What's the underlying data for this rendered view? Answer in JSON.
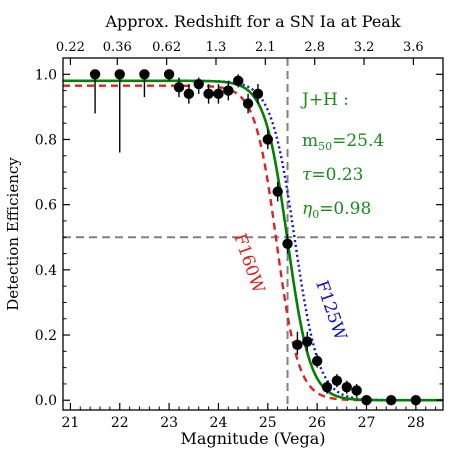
{
  "chart_data": {
    "type": "scatter",
    "title": "",
    "xlabel": "Magnitude (Vega)",
    "ylabel": "Detection Efficiency",
    "top_xlabel": "Approx. Redshift for a SN Ia at Peak",
    "xlim": [
      20.85,
      28.55
    ],
    "ylim": [
      -0.03,
      1.05
    ],
    "x_ticks": [
      21,
      22,
      23,
      24,
      25,
      26,
      27,
      28
    ],
    "y_ticks": [
      0.0,
      0.2,
      0.4,
      0.6,
      0.8,
      1.0
    ],
    "x_tick_labels": [
      "21",
      "22",
      "23",
      "24",
      "25",
      "26",
      "27",
      "28"
    ],
    "y_tick_labels": [
      "0.0",
      "0.2",
      "0.4",
      "0.6",
      "0.8",
      "1.0"
    ],
    "top_ticks": [
      {
        "mag": 21.0,
        "label": "0.22"
      },
      {
        "mag": 21.95,
        "label": "0.36"
      },
      {
        "mag": 22.95,
        "label": "0.62"
      },
      {
        "mag": 23.95,
        "label": "1.3"
      },
      {
        "mag": 24.95,
        "label": "2.1"
      },
      {
        "mag": 25.95,
        "label": "2.8"
      },
      {
        "mag": 26.95,
        "label": "3.2"
      },
      {
        "mag": 27.95,
        "label": "3.6"
      }
    ],
    "reference_lines": {
      "vertical_mag": 25.4,
      "horizontal_efficiency": 0.5
    },
    "series": [
      {
        "name": "J+H",
        "kind": "points",
        "color": "#000000",
        "points": [
          {
            "x": 21.5,
            "y": 1.0,
            "err_low": 0.88,
            "err_high": 1.01
          },
          {
            "x": 22.0,
            "y": 1.0,
            "err_low": 0.76,
            "err_high": 1.01
          },
          {
            "x": 22.5,
            "y": 1.0,
            "err_low": 0.93,
            "err_high": 1.01
          },
          {
            "x": 23.0,
            "y": 1.0,
            "err_low": 0.98,
            "err_high": 1.01
          },
          {
            "x": 23.2,
            "y": 0.96,
            "err_low": 0.93,
            "err_high": 0.99
          },
          {
            "x": 23.4,
            "y": 0.94,
            "err_low": 0.91,
            "err_high": 0.97
          },
          {
            "x": 23.6,
            "y": 0.97,
            "err_low": 0.94,
            "err_high": 0.99
          },
          {
            "x": 23.8,
            "y": 0.94,
            "err_low": 0.91,
            "err_high": 0.97
          },
          {
            "x": 24.0,
            "y": 0.94,
            "err_low": 0.91,
            "err_high": 0.97
          },
          {
            "x": 24.2,
            "y": 0.95,
            "err_low": 0.92,
            "err_high": 0.98
          },
          {
            "x": 24.4,
            "y": 0.98,
            "err_low": 0.96,
            "err_high": 1.0
          },
          {
            "x": 24.6,
            "y": 0.91,
            "err_low": 0.88,
            "err_high": 0.94
          },
          {
            "x": 24.8,
            "y": 0.94,
            "err_low": 0.91,
            "err_high": 0.97
          },
          {
            "x": 25.0,
            "y": 0.8,
            "err_low": 0.77,
            "err_high": 0.83
          },
          {
            "x": 25.2,
            "y": 0.64,
            "err_low": 0.61,
            "err_high": 0.67
          },
          {
            "x": 25.4,
            "y": 0.48,
            "err_low": 0.45,
            "err_high": 0.51
          },
          {
            "x": 25.6,
            "y": 0.17,
            "err_low": 0.14,
            "err_high": 0.21
          },
          {
            "x": 25.8,
            "y": 0.18,
            "err_low": 0.15,
            "err_high": 0.21
          },
          {
            "x": 26.0,
            "y": 0.12,
            "err_low": 0.1,
            "err_high": 0.14
          },
          {
            "x": 26.2,
            "y": 0.04,
            "err_low": 0.02,
            "err_high": 0.06
          },
          {
            "x": 26.4,
            "y": 0.06,
            "err_low": 0.04,
            "err_high": 0.08
          },
          {
            "x": 26.6,
            "y": 0.04,
            "err_low": 0.02,
            "err_high": 0.06
          },
          {
            "x": 26.8,
            "y": 0.03,
            "err_low": 0.01,
            "err_high": 0.05
          },
          {
            "x": 27.0,
            "y": 0.0,
            "err_low": -0.01,
            "err_high": 0.01
          },
          {
            "x": 27.5,
            "y": 0.0,
            "err_low": -0.01,
            "err_high": 0.01
          },
          {
            "x": 28.0,
            "y": 0.0,
            "err_low": -0.01,
            "err_high": 0.01
          }
        ]
      },
      {
        "name": "J+H",
        "kind": "fit",
        "style": "solid",
        "color": "#008000",
        "m50": 25.4,
        "tau": 0.23,
        "eta0": 0.98
      },
      {
        "name": "F125W",
        "kind": "fit",
        "style": "dotted",
        "color": "#1010c8",
        "m50": 25.55,
        "tau": 0.24,
        "eta0": 0.98
      },
      {
        "name": "F160W",
        "kind": "fit",
        "style": "dashed",
        "color": "#e02020",
        "m50": 25.18,
        "tau": 0.22,
        "eta0": 0.965
      }
    ],
    "annotations": {
      "fit_title": "J+H :",
      "m50_prefix": "m",
      "m50_sub": "50",
      "m50_value": "=25.4",
      "tau_symbol": "τ",
      "tau_value": "=0.23",
      "eta_symbol": "η",
      "eta_sub": "0",
      "eta_value": "=0.98",
      "f160_label": "F160W",
      "f125_label": "F125W"
    }
  }
}
